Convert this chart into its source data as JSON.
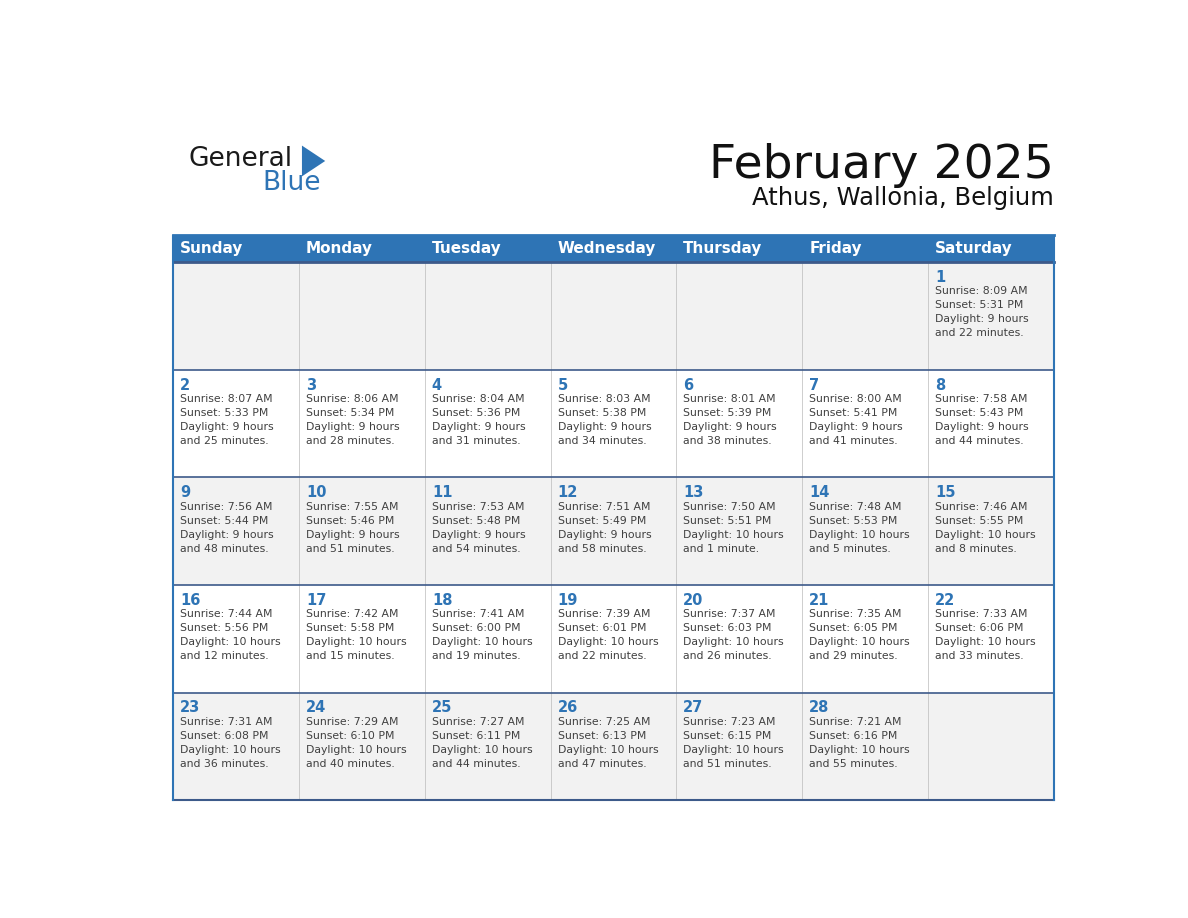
{
  "title": "February 2025",
  "subtitle": "Athus, Wallonia, Belgium",
  "days_of_week": [
    "Sunday",
    "Monday",
    "Tuesday",
    "Wednesday",
    "Thursday",
    "Friday",
    "Saturday"
  ],
  "header_bg": "#2E74B5",
  "header_text": "#FFFFFF",
  "row_bg_light": "#F2F2F2",
  "row_bg_white": "#FFFFFF",
  "divider_color": "#3D5A8A",
  "border_color": "#2E74B5",
  "text_color": "#404040",
  "day_number_color": "#2E74B5",
  "calendar_data": [
    [
      {
        "day": "",
        "info": ""
      },
      {
        "day": "",
        "info": ""
      },
      {
        "day": "",
        "info": ""
      },
      {
        "day": "",
        "info": ""
      },
      {
        "day": "",
        "info": ""
      },
      {
        "day": "",
        "info": ""
      },
      {
        "day": "1",
        "info": "Sunrise: 8:09 AM\nSunset: 5:31 PM\nDaylight: 9 hours\nand 22 minutes."
      }
    ],
    [
      {
        "day": "2",
        "info": "Sunrise: 8:07 AM\nSunset: 5:33 PM\nDaylight: 9 hours\nand 25 minutes."
      },
      {
        "day": "3",
        "info": "Sunrise: 8:06 AM\nSunset: 5:34 PM\nDaylight: 9 hours\nand 28 minutes."
      },
      {
        "day": "4",
        "info": "Sunrise: 8:04 AM\nSunset: 5:36 PM\nDaylight: 9 hours\nand 31 minutes."
      },
      {
        "day": "5",
        "info": "Sunrise: 8:03 AM\nSunset: 5:38 PM\nDaylight: 9 hours\nand 34 minutes."
      },
      {
        "day": "6",
        "info": "Sunrise: 8:01 AM\nSunset: 5:39 PM\nDaylight: 9 hours\nand 38 minutes."
      },
      {
        "day": "7",
        "info": "Sunrise: 8:00 AM\nSunset: 5:41 PM\nDaylight: 9 hours\nand 41 minutes."
      },
      {
        "day": "8",
        "info": "Sunrise: 7:58 AM\nSunset: 5:43 PM\nDaylight: 9 hours\nand 44 minutes."
      }
    ],
    [
      {
        "day": "9",
        "info": "Sunrise: 7:56 AM\nSunset: 5:44 PM\nDaylight: 9 hours\nand 48 minutes."
      },
      {
        "day": "10",
        "info": "Sunrise: 7:55 AM\nSunset: 5:46 PM\nDaylight: 9 hours\nand 51 minutes."
      },
      {
        "day": "11",
        "info": "Sunrise: 7:53 AM\nSunset: 5:48 PM\nDaylight: 9 hours\nand 54 minutes."
      },
      {
        "day": "12",
        "info": "Sunrise: 7:51 AM\nSunset: 5:49 PM\nDaylight: 9 hours\nand 58 minutes."
      },
      {
        "day": "13",
        "info": "Sunrise: 7:50 AM\nSunset: 5:51 PM\nDaylight: 10 hours\nand 1 minute."
      },
      {
        "day": "14",
        "info": "Sunrise: 7:48 AM\nSunset: 5:53 PM\nDaylight: 10 hours\nand 5 minutes."
      },
      {
        "day": "15",
        "info": "Sunrise: 7:46 AM\nSunset: 5:55 PM\nDaylight: 10 hours\nand 8 minutes."
      }
    ],
    [
      {
        "day": "16",
        "info": "Sunrise: 7:44 AM\nSunset: 5:56 PM\nDaylight: 10 hours\nand 12 minutes."
      },
      {
        "day": "17",
        "info": "Sunrise: 7:42 AM\nSunset: 5:58 PM\nDaylight: 10 hours\nand 15 minutes."
      },
      {
        "day": "18",
        "info": "Sunrise: 7:41 AM\nSunset: 6:00 PM\nDaylight: 10 hours\nand 19 minutes."
      },
      {
        "day": "19",
        "info": "Sunrise: 7:39 AM\nSunset: 6:01 PM\nDaylight: 10 hours\nand 22 minutes."
      },
      {
        "day": "20",
        "info": "Sunrise: 7:37 AM\nSunset: 6:03 PM\nDaylight: 10 hours\nand 26 minutes."
      },
      {
        "day": "21",
        "info": "Sunrise: 7:35 AM\nSunset: 6:05 PM\nDaylight: 10 hours\nand 29 minutes."
      },
      {
        "day": "22",
        "info": "Sunrise: 7:33 AM\nSunset: 6:06 PM\nDaylight: 10 hours\nand 33 minutes."
      }
    ],
    [
      {
        "day": "23",
        "info": "Sunrise: 7:31 AM\nSunset: 6:08 PM\nDaylight: 10 hours\nand 36 minutes."
      },
      {
        "day": "24",
        "info": "Sunrise: 7:29 AM\nSunset: 6:10 PM\nDaylight: 10 hours\nand 40 minutes."
      },
      {
        "day": "25",
        "info": "Sunrise: 7:27 AM\nSunset: 6:11 PM\nDaylight: 10 hours\nand 44 minutes."
      },
      {
        "day": "26",
        "info": "Sunrise: 7:25 AM\nSunset: 6:13 PM\nDaylight: 10 hours\nand 47 minutes."
      },
      {
        "day": "27",
        "info": "Sunrise: 7:23 AM\nSunset: 6:15 PM\nDaylight: 10 hours\nand 51 minutes."
      },
      {
        "day": "28",
        "info": "Sunrise: 7:21 AM\nSunset: 6:16 PM\nDaylight: 10 hours\nand 55 minutes."
      },
      {
        "day": "",
        "info": ""
      }
    ]
  ],
  "row_backgrounds": [
    "#F2F2F2",
    "#FFFFFF",
    "#F2F2F2",
    "#FFFFFF",
    "#F2F2F2"
  ]
}
